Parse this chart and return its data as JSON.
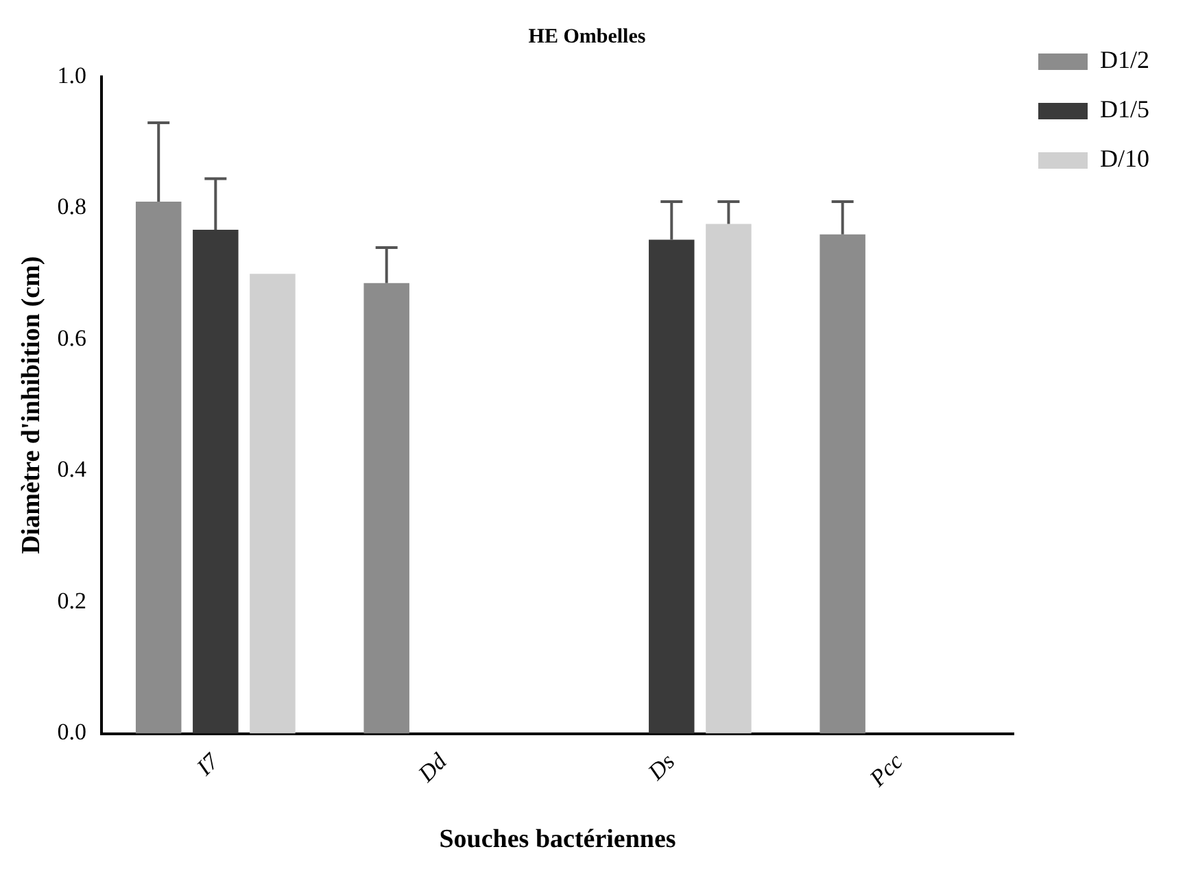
{
  "chart_data": {
    "type": "bar",
    "title": "HE Ombelles",
    "xlabel": "Souches bactériennes",
    "ylabel": "Diamètre d'inhibition (cm)",
    "categories": [
      "I7",
      "Dd",
      "Ds",
      "Pcc"
    ],
    "series": [
      {
        "name": "D1/2",
        "color": "#8c8c8c",
        "values": [
          0.81,
          0.686,
          null,
          0.76
        ],
        "errors": [
          [
            0.81,
            0.93
          ],
          [
            0.686,
            0.74
          ],
          null,
          [
            0.76,
            0.81
          ]
        ]
      },
      {
        "name": "D1/5",
        "color": "#3a3a3a",
        "values": [
          0.767,
          null,
          0.752,
          null
        ],
        "errors": [
          [
            0.767,
            0.845
          ],
          null,
          [
            0.752,
            0.81
          ],
          null
        ]
      },
      {
        "name": "D/10",
        "color": "#d0d0d0",
        "values": [
          0.7,
          null,
          0.776,
          null
        ],
        "errors": [
          null,
          null,
          [
            0.776,
            0.81
          ],
          null
        ]
      }
    ],
    "ylim": [
      0,
      1
    ],
    "yticks": [
      {
        "value": 0,
        "label": "0.0"
      },
      0.2,
      0.4,
      0.6,
      0.8,
      {
        "value": 1,
        "label": "1.0"
      }
    ],
    "grid": false,
    "legend": "top right"
  }
}
